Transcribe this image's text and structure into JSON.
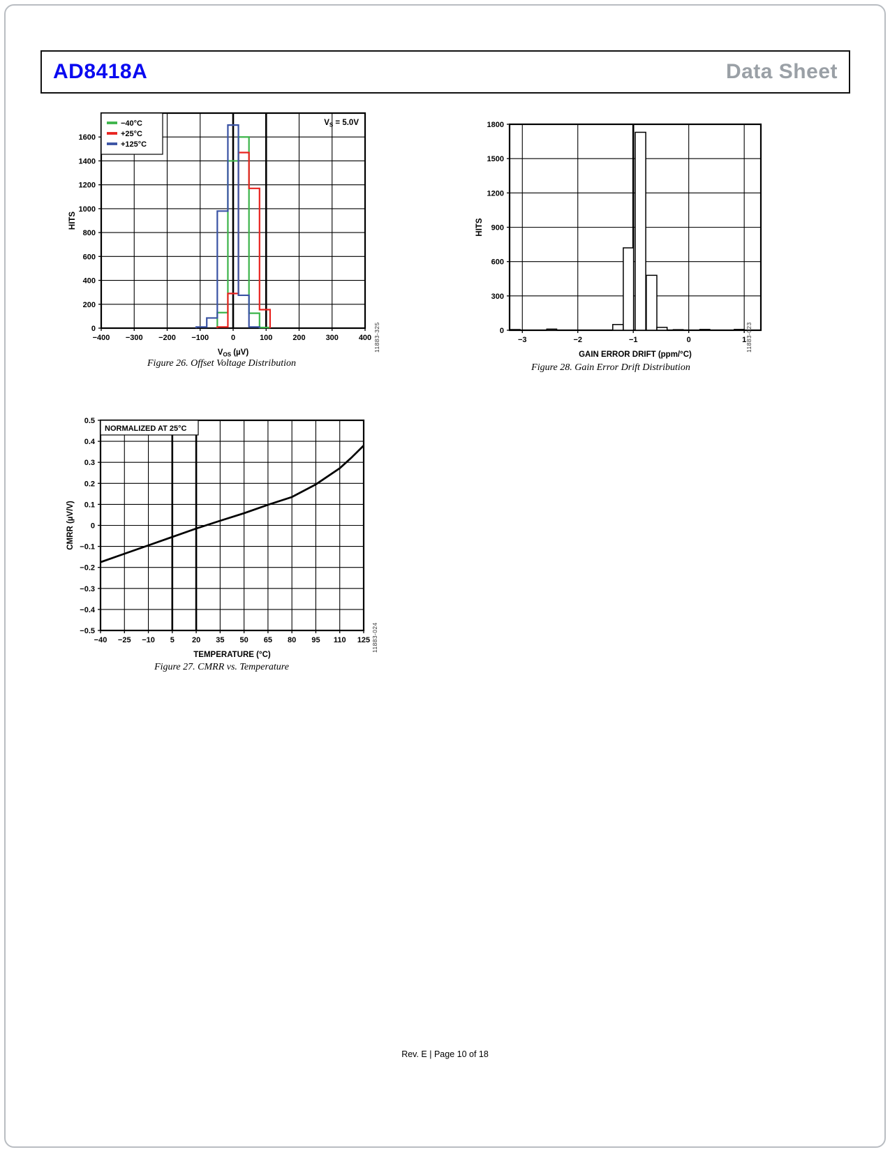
{
  "header": {
    "part": "AD8418A",
    "doc_type": "Data Sheet"
  },
  "footer": {
    "text": "Rev. E | Page 10 of 18"
  },
  "colors": {
    "brand_blue": "#0a0af0",
    "doc_type_gray": "#9aa0a6",
    "series_green": "#3cb44a",
    "series_red": "#e8231f",
    "series_blue": "#3a53a4",
    "plot_line_black": "#000000"
  },
  "chart_data": [
    {
      "id": "fig26",
      "type": "bar",
      "subtype": "step-histogram",
      "ylabel": "HITS",
      "xlabel_parts": [
        {
          "text": "V"
        },
        {
          "text": "OS",
          "sub": true
        },
        {
          "text": " (µV)"
        }
      ],
      "annotation_parts": [
        {
          "text": "V"
        },
        {
          "text": "S",
          "sub": true
        },
        {
          "text": " = 5.0V"
        }
      ],
      "xlim": [
        -400,
        400
      ],
      "ylim": [
        0,
        1800
      ],
      "grid": true,
      "xticks": {
        "values": [
          -400,
          -300,
          -200,
          -100,
          0,
          100,
          200,
          300,
          400
        ],
        "labels": [
          "−400",
          "−300",
          "−200",
          "−100",
          "0",
          "100",
          "200",
          "300",
          "400"
        ],
        "thick": [
          0,
          100
        ]
      },
      "yticks": {
        "values": [
          0,
          200,
          400,
          600,
          800,
          1000,
          1200,
          1400,
          1600
        ],
        "labels": [
          "0",
          "200",
          "400",
          "600",
          "800",
          "1000",
          "1200",
          "1400",
          "1600"
        ]
      },
      "legend_position": "top-left",
      "legend": [
        {
          "label": "−40°C",
          "color": "#3cb44a"
        },
        {
          "label": "+25°C",
          "color": "#e8231f"
        },
        {
          "label": "+125°C",
          "color": "#3a53a4"
        }
      ],
      "series": [
        {
          "name": "−40°C",
          "color": "#3cb44a",
          "bin_edges": [
            -48,
            -16,
            16,
            48,
            80,
            112
          ],
          "hits": [
            130,
            1400,
            1600,
            125,
            5
          ]
        },
        {
          "name": "+25°C",
          "color": "#e8231f",
          "bin_edges": [
            -48,
            -16,
            16,
            48,
            80,
            112
          ],
          "hits": [
            10,
            290,
            1470,
            1170,
            155
          ]
        },
        {
          "name": "+125°C",
          "color": "#3a53a4",
          "bin_edges": [
            -112,
            -80,
            -48,
            -16,
            16,
            48,
            80
          ],
          "hits": [
            10,
            85,
            980,
            1700,
            275,
            10
          ]
        }
      ],
      "caption": "Figure 26. Offset Voltage Distribution",
      "code": "11883-325"
    },
    {
      "id": "fig27",
      "type": "line",
      "ylabel": "CMRR (µV/V)",
      "xlabel": "TEMPERATURE (°C)",
      "annotation_box": "NORMALIZED AT 25°C",
      "xlim": [
        -40,
        125
      ],
      "ylim": [
        -0.5,
        0.5
      ],
      "grid": true,
      "xticks": {
        "values": [
          -40,
          -25,
          -10,
          5,
          20,
          35,
          50,
          65,
          80,
          95,
          110,
          125
        ],
        "labels": [
          "−40",
          "−25",
          "−10",
          "5",
          "20",
          "35",
          "50",
          "65",
          "80",
          "95",
          "110",
          "125"
        ],
        "thick": [
          5,
          20
        ]
      },
      "yticks": {
        "values": [
          0.5,
          0.4,
          0.3,
          0.2,
          0.1,
          0,
          -0.1,
          -0.2,
          -0.3,
          -0.4,
          -0.5
        ],
        "labels": [
          "0.5",
          "0.4",
          "0.3",
          "0.2",
          "0.1",
          "0",
          "−0.1",
          "−0.2",
          "−0.3",
          "−0.4",
          "−0.5"
        ]
      },
      "points": [
        [
          -40,
          -0.175
        ],
        [
          -25,
          -0.135
        ],
        [
          -10,
          -0.095
        ],
        [
          5,
          -0.055
        ],
        [
          20,
          -0.015
        ],
        [
          35,
          0.022
        ],
        [
          50,
          0.058
        ],
        [
          65,
          0.098
        ],
        [
          80,
          0.135
        ],
        [
          95,
          0.195
        ],
        [
          110,
          0.272
        ],
        [
          117,
          0.32
        ],
        [
          125,
          0.38
        ]
      ],
      "caption": "Figure 27. CMRR vs. Temperature",
      "code": "11883-024"
    },
    {
      "id": "fig28",
      "type": "bar",
      "subtype": "outline-histogram",
      "ylabel": "HITS",
      "xlabel": "GAIN ERROR DRIFT (ppm/°C)",
      "xlim": [
        -3.23,
        1.3
      ],
      "ylim": [
        0,
        1800
      ],
      "grid": true,
      "xticks": {
        "values": [
          -3,
          -2,
          -1,
          0,
          1
        ],
        "labels": [
          "−3",
          "−2",
          "−1",
          "0",
          "1"
        ],
        "thick": [
          -1
        ]
      },
      "yticks": {
        "values": [
          0,
          300,
          600,
          900,
          1200,
          1500,
          1800
        ],
        "labels": [
          "0",
          "300",
          "600",
          "900",
          "1200",
          "1500",
          "1800"
        ]
      },
      "bars": [
        {
          "x0": -3.22,
          "x1": -3.04,
          "hits": 6
        },
        {
          "x0": -2.56,
          "x1": -2.38,
          "hits": 10
        },
        {
          "x0": -1.37,
          "x1": -1.18,
          "hits": 50
        },
        {
          "x0": -1.18,
          "x1": -0.995,
          "hits": 720
        },
        {
          "x0": -0.965,
          "x1": -0.775,
          "hits": 1730
        },
        {
          "x0": -0.765,
          "x1": -0.575,
          "hits": 480
        },
        {
          "x0": -0.575,
          "x1": -0.39,
          "hits": 25
        },
        {
          "x0": -0.28,
          "x1": -0.1,
          "hits": 5
        },
        {
          "x0": 0.2,
          "x1": 0.38,
          "hits": 7
        },
        {
          "x0": 0.82,
          "x1": 1.0,
          "hits": 7
        }
      ],
      "caption": "Figure 28. Gain Error Drift Distribution",
      "code": "11883-023"
    }
  ]
}
